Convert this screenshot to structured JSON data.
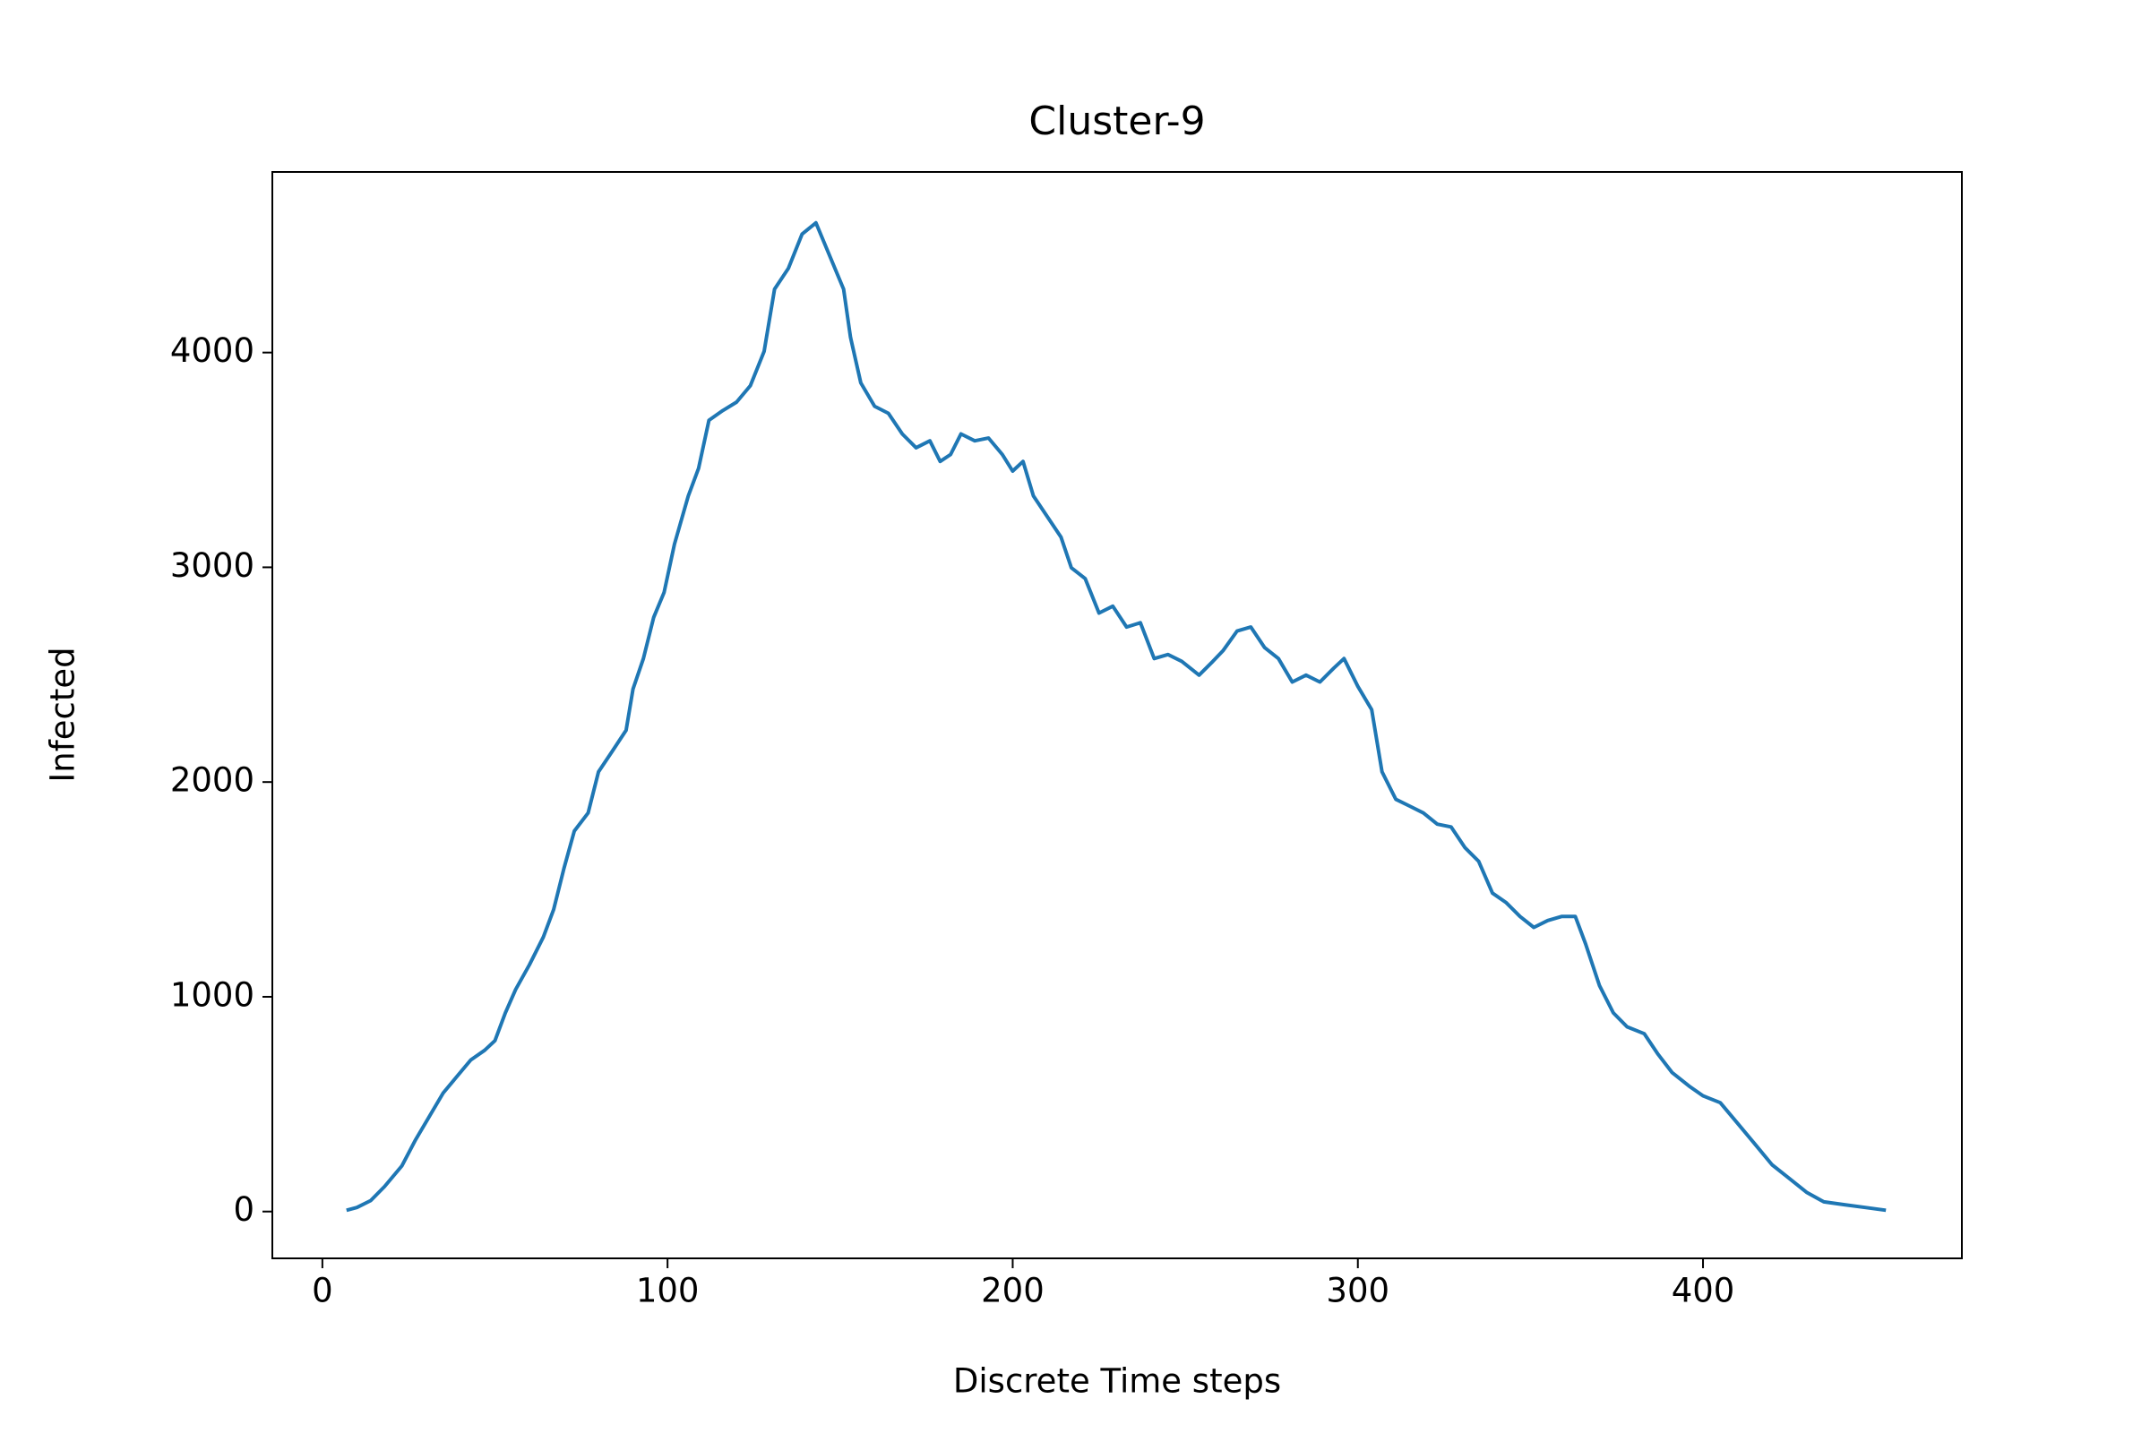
{
  "chart_data": {
    "type": "line",
    "title": "Cluster-9",
    "x_label": "Discrete Time steps",
    "y_label": "Infected",
    "color": "#1f77b4",
    "x": [
      7,
      10,
      14,
      18,
      23,
      27,
      31,
      35,
      39,
      43,
      47,
      50,
      53,
      56,
      60,
      64,
      67,
      70,
      73,
      77,
      80,
      84,
      88,
      90,
      93,
      96,
      99,
      102,
      106,
      109,
      112,
      116,
      120,
      124,
      128,
      131,
      135,
      139,
      143,
      146,
      151,
      153,
      156,
      160,
      164,
      168,
      172,
      176,
      179,
      182,
      185,
      189,
      193,
      197,
      200,
      203,
      206,
      210,
      214,
      217,
      221,
      225,
      229,
      233,
      237,
      241,
      245,
      249,
      254,
      258,
      261,
      265,
      269,
      273,
      277,
      281,
      285,
      289,
      293,
      296,
      300,
      304,
      307,
      311,
      315,
      319,
      323,
      327,
      331,
      335,
      339,
      343,
      347,
      351,
      355,
      359,
      363,
      366,
      370,
      374,
      378,
      383,
      387,
      391,
      396,
      400,
      405,
      410,
      415,
      420,
      425,
      430,
      435,
      441,
      447,
      453
    ],
    "values": [
      6,
      19,
      51,
      116,
      212,
      334,
      443,
      552,
      629,
      706,
      751,
      796,
      925,
      1034,
      1149,
      1278,
      1406,
      1599,
      1772,
      1856,
      2048,
      2144,
      2241,
      2433,
      2575,
      2767,
      2883,
      3108,
      3332,
      3461,
      3685,
      3730,
      3769,
      3846,
      4006,
      4295,
      4392,
      4552,
      4604,
      4488,
      4295,
      4071,
      3859,
      3750,
      3717,
      3621,
      3557,
      3589,
      3493,
      3525,
      3621,
      3589,
      3602,
      3525,
      3448,
      3493,
      3332,
      3236,
      3140,
      2998,
      2947,
      2787,
      2819,
      2722,
      2742,
      2575,
      2594,
      2562,
      2498,
      2562,
      2613,
      2703,
      2722,
      2626,
      2575,
      2466,
      2498,
      2466,
      2530,
      2575,
      2446,
      2337,
      2048,
      1920,
      1888,
      1856,
      1804,
      1791,
      1695,
      1631,
      1483,
      1438,
      1374,
      1323,
      1355,
      1374,
      1374,
      1246,
      1053,
      925,
      860,
      828,
      732,
      648,
      584,
      539,
      507,
      411,
      315,
      218,
      154,
      90,
      45,
      32,
      19,
      6
    ],
    "xlim": [
      -14.5,
      475
    ],
    "ylim": [
      -218,
      4841
    ],
    "xticks": [
      0,
      100,
      200,
      300,
      400
    ],
    "yticks": [
      0,
      1000,
      2000,
      3000,
      4000
    ]
  }
}
